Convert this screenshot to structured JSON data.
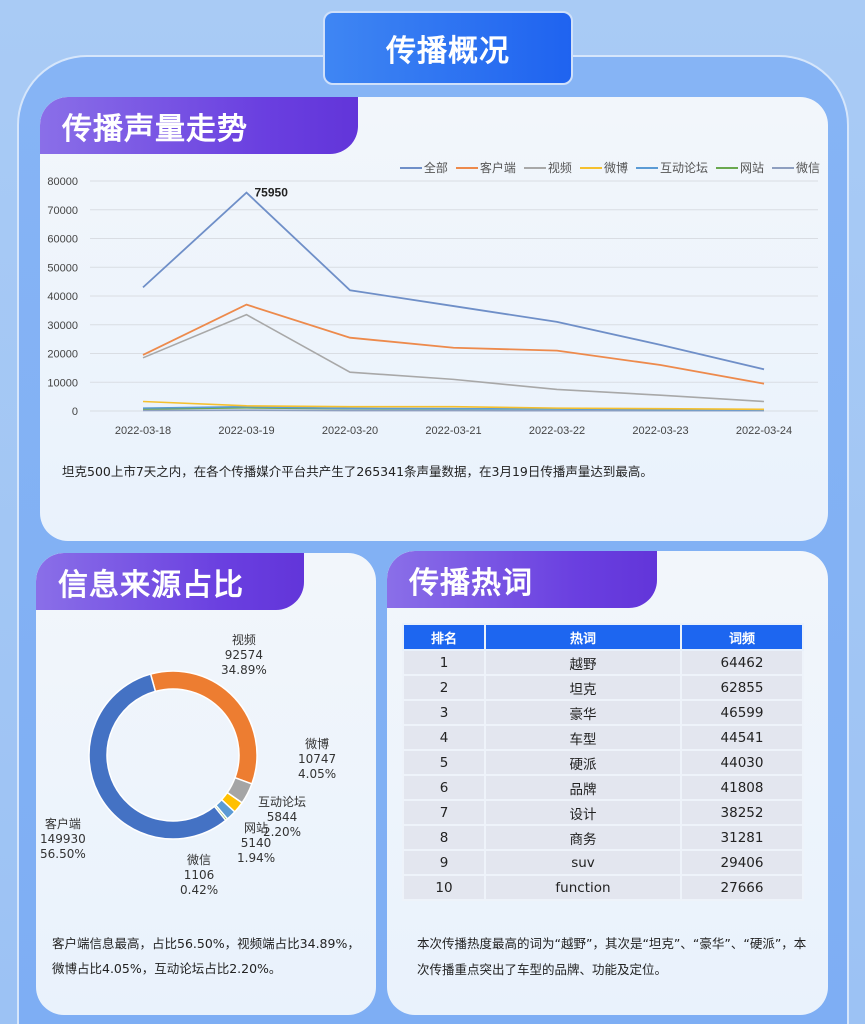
{
  "main_title": "传播概况",
  "trend": {
    "title": "传播声量走势",
    "summary": "坦克500上市7天之内，在各个传播媒介平台共产生了265341条声量数据，在3月19日传播声量达到最高。",
    "peak_label": "75950"
  },
  "source": {
    "title": "信息来源占比",
    "summary": "客户端信息最高，占比56.50%，视频端占比34.89%，微博占比4.05%，互动论坛占比2.20%。",
    "labels": [
      {
        "name": "视频",
        "value": "92574",
        "pct": "34.89%"
      },
      {
        "name": "微博",
        "value": "10747",
        "pct": "4.05%"
      },
      {
        "name": "互动论坛",
        "value": "5844",
        "pct": "2.20%"
      },
      {
        "name": "网站",
        "value": "5140",
        "pct": "1.94%"
      },
      {
        "name": "微信",
        "value": "1106",
        "pct": "0.42%"
      },
      {
        "name": "客户端",
        "value": "149930",
        "pct": "56.50%"
      }
    ]
  },
  "hot": {
    "title": "传播热词",
    "headers": [
      "排名",
      "热词",
      "词频"
    ],
    "rows": [
      [
        "1",
        "越野",
        "64462"
      ],
      [
        "2",
        "坦克",
        "62855"
      ],
      [
        "3",
        "豪华",
        "46599"
      ],
      [
        "4",
        "车型",
        "44541"
      ],
      [
        "5",
        "硬派",
        "44030"
      ],
      [
        "6",
        "品牌",
        "41808"
      ],
      [
        "7",
        "设计",
        "38252"
      ],
      [
        "8",
        "商务",
        "31281"
      ],
      [
        "9",
        "suv",
        "29406"
      ],
      [
        "10",
        "function",
        "27666"
      ]
    ],
    "summary": "本次传播热度最高的词为“越野”，其次是“坦克”、“豪华”、“硬派”，本次传播重点突出了车型的品牌、功能及定位。"
  },
  "chart_data": [
    {
      "type": "line",
      "title": "传播声量走势",
      "x": [
        "2022-03-18",
        "2022-03-19",
        "2022-03-20",
        "2022-03-21",
        "2022-03-22",
        "2022-03-23",
        "2022-03-24"
      ],
      "xlabel": "",
      "ylabel": "",
      "ylim": [
        0,
        80000
      ],
      "yticks": [
        0,
        10000,
        20000,
        30000,
        40000,
        50000,
        60000,
        70000,
        80000
      ],
      "grid": true,
      "legend_position": "top-right",
      "annotations": [
        {
          "x": "2022-03-19",
          "series": "全部",
          "text": "75950"
        }
      ],
      "series": [
        {
          "name": "全部",
          "color": "#6f8fc8",
          "values": [
            43000,
            75950,
            42000,
            36500,
            31000,
            23000,
            14500
          ]
        },
        {
          "name": "客户端",
          "color": "#ed8a4c",
          "values": [
            19500,
            37000,
            25500,
            22000,
            21000,
            16000,
            9500
          ]
        },
        {
          "name": "视频",
          "color": "#a8a8a8",
          "values": [
            18500,
            33500,
            13500,
            11000,
            7500,
            5500,
            3300
          ]
        },
        {
          "name": "微博",
          "color": "#f5c02e",
          "values": [
            3300,
            1800,
            1500,
            1500,
            1000,
            800,
            600
          ]
        },
        {
          "name": "互动论坛",
          "color": "#5b9bd5",
          "values": [
            1000,
            1500,
            900,
            800,
            700,
            500,
            400
          ]
        },
        {
          "name": "网站",
          "color": "#6aa84f",
          "values": [
            700,
            1100,
            800,
            700,
            700,
            600,
            500
          ]
        },
        {
          "name": "微信",
          "color": "#8e9fc0",
          "values": [
            200,
            300,
            150,
            150,
            100,
            100,
            100
          ]
        }
      ]
    },
    {
      "type": "pie",
      "subtype": "donut",
      "title": "信息来源占比",
      "categories": [
        "客户端",
        "视频",
        "微博",
        "互动论坛",
        "网站",
        "微信"
      ],
      "values": [
        149930,
        92574,
        10747,
        5844,
        5140,
        1106
      ],
      "percentages": [
        56.5,
        34.89,
        4.05,
        2.2,
        1.94,
        0.42
      ],
      "colors": [
        "#4472c4",
        "#ed7d31",
        "#a5a5a5",
        "#ffc000",
        "#5b9bd5",
        "#70ad47"
      ]
    }
  ]
}
